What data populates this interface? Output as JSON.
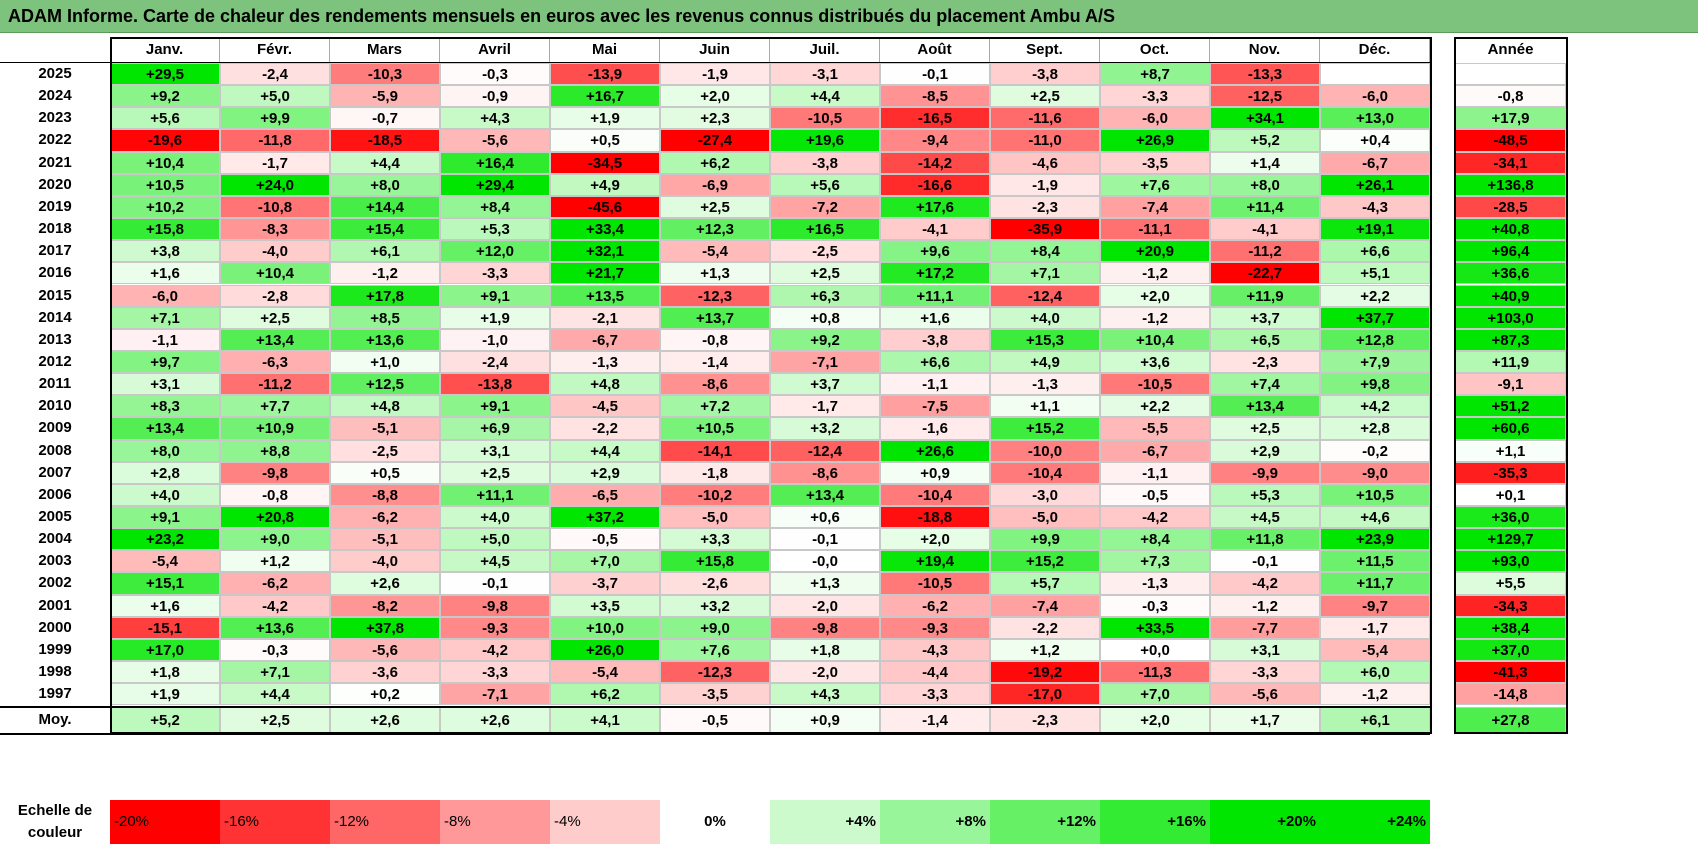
{
  "title": "ADAM Informe. Carte de chaleur des rendements mensuels en euros avec les revenus connus distribués du placement Ambu A/S",
  "colors": {
    "positive": "#00e600",
    "negative": "#ff0000",
    "neutral": "#ffffff",
    "title_bg": "#7dc27d"
  },
  "chart_data": {
    "type": "heatmap",
    "columns": [
      "Janv.",
      "Févr.",
      "Mars",
      "Avril",
      "Mai",
      "Juin",
      "Juil.",
      "Août",
      "Sept.",
      "Oct.",
      "Nov.",
      "Déc."
    ],
    "year_column_label": "Année",
    "rows": [
      {
        "year": "2025",
        "values": [
          "+29,5",
          "-2,4",
          "-10,3",
          "-0,3",
          "-13,9",
          "-1,9",
          "-3,1",
          "-0,1",
          "-3,8",
          "+8,7",
          "-13,3",
          ""
        ],
        "annual": ""
      },
      {
        "year": "2024",
        "values": [
          "+9,2",
          "+5,0",
          "-5,9",
          "-0,9",
          "+16,7",
          "+2,0",
          "+4,4",
          "-8,5",
          "+2,5",
          "-3,3",
          "-12,5",
          "-6,0"
        ],
        "annual": "-0,8"
      },
      {
        "year": "2023",
        "values": [
          "+5,6",
          "+9,9",
          "-0,7",
          "+4,3",
          "+1,9",
          "+2,3",
          "-10,5",
          "-16,5",
          "-11,6",
          "-6,0",
          "+34,1",
          "+13,0"
        ],
        "annual": "+17,9"
      },
      {
        "year": "2022",
        "values": [
          "-19,6",
          "-11,8",
          "-18,5",
          "-5,6",
          "+0,5",
          "-27,4",
          "+19,6",
          "-9,4",
          "-11,0",
          "+26,9",
          "+5,2",
          "+0,4"
        ],
        "annual": "-48,5"
      },
      {
        "year": "2021",
        "values": [
          "+10,4",
          "-1,7",
          "+4,4",
          "+16,4",
          "-34,5",
          "+6,2",
          "-3,8",
          "-14,2",
          "-4,6",
          "-3,5",
          "+1,4",
          "-6,7"
        ],
        "annual": "-34,1"
      },
      {
        "year": "2020",
        "values": [
          "+10,5",
          "+24,0",
          "+8,0",
          "+29,4",
          "+4,9",
          "-6,9",
          "+5,6",
          "-16,6",
          "-1,9",
          "+7,6",
          "+8,0",
          "+26,1"
        ],
        "annual": "+136,8"
      },
      {
        "year": "2019",
        "values": [
          "+10,2",
          "-10,8",
          "+14,4",
          "+8,4",
          "-45,6",
          "+2,5",
          "-7,2",
          "+17,6",
          "-2,3",
          "-7,4",
          "+11,4",
          "-4,3"
        ],
        "annual": "-28,5"
      },
      {
        "year": "2018",
        "values": [
          "+15,8",
          "-8,3",
          "+15,4",
          "+5,3",
          "+33,4",
          "+12,3",
          "+16,5",
          "-4,1",
          "-35,9",
          "-11,1",
          "-4,1",
          "+19,1"
        ],
        "annual": "+40,8"
      },
      {
        "year": "2017",
        "values": [
          "+3,8",
          "-4,0",
          "+6,1",
          "+12,0",
          "+32,1",
          "-5,4",
          "-2,5",
          "+9,6",
          "+8,4",
          "+20,9",
          "-11,2",
          "+6,6"
        ],
        "annual": "+96,4"
      },
      {
        "year": "2016",
        "values": [
          "+1,6",
          "+10,4",
          "-1,2",
          "-3,3",
          "+21,7",
          "+1,3",
          "+2,5",
          "+17,2",
          "+7,1",
          "-1,2",
          "-22,7",
          "+5,1"
        ],
        "annual": "+36,6"
      },
      {
        "year": "2015",
        "values": [
          "-6,0",
          "-2,8",
          "+17,8",
          "+9,1",
          "+13,5",
          "-12,3",
          "+6,3",
          "+11,1",
          "-12,4",
          "+2,0",
          "+11,9",
          "+2,2"
        ],
        "annual": "+40,9"
      },
      {
        "year": "2014",
        "values": [
          "+7,1",
          "+2,5",
          "+8,5",
          "+1,9",
          "-2,1",
          "+13,7",
          "+0,8",
          "+1,6",
          "+4,0",
          "-1,2",
          "+3,7",
          "+37,7"
        ],
        "annual": "+103,0"
      },
      {
        "year": "2013",
        "values": [
          "-1,1",
          "+13,4",
          "+13,6",
          "-1,0",
          "-6,7",
          "-0,8",
          "+9,2",
          "-3,8",
          "+15,3",
          "+10,4",
          "+6,5",
          "+12,8"
        ],
        "annual": "+87,3"
      },
      {
        "year": "2012",
        "values": [
          "+9,7",
          "-6,3",
          "+1,0",
          "-2,4",
          "-1,3",
          "-1,4",
          "-7,1",
          "+6,6",
          "+4,9",
          "+3,6",
          "-2,3",
          "+7,9"
        ],
        "annual": "+11,9"
      },
      {
        "year": "2011",
        "values": [
          "+3,1",
          "-11,2",
          "+12,5",
          "-13,8",
          "+4,8",
          "-8,6",
          "+3,7",
          "-1,1",
          "-1,3",
          "-10,5",
          "+7,4",
          "+9,8"
        ],
        "annual": "-9,1"
      },
      {
        "year": "2010",
        "values": [
          "+8,3",
          "+7,7",
          "+4,8",
          "+9,1",
          "-4,5",
          "+7,2",
          "-1,7",
          "-7,5",
          "+1,1",
          "+2,2",
          "+13,4",
          "+4,2"
        ],
        "annual": "+51,2"
      },
      {
        "year": "2009",
        "values": [
          "+13,4",
          "+10,9",
          "-5,1",
          "+6,9",
          "-2,2",
          "+10,5",
          "+3,2",
          "-1,6",
          "+15,2",
          "-5,5",
          "+2,5",
          "+2,8"
        ],
        "annual": "+60,6"
      },
      {
        "year": "2008",
        "values": [
          "+8,0",
          "+8,8",
          "-2,5",
          "+3,1",
          "+4,4",
          "-14,1",
          "-12,4",
          "+26,6",
          "-10,0",
          "-6,7",
          "+2,9",
          "-0,2"
        ],
        "annual": "+1,1"
      },
      {
        "year": "2007",
        "values": [
          "+2,8",
          "-9,8",
          "+0,5",
          "+2,5",
          "+2,9",
          "-1,8",
          "-8,6",
          "+0,9",
          "-10,4",
          "-1,1",
          "-9,9",
          "-9,0"
        ],
        "annual": "-35,3"
      },
      {
        "year": "2006",
        "values": [
          "+4,0",
          "-0,8",
          "-8,8",
          "+11,1",
          "-6,5",
          "-10,2",
          "+13,4",
          "-10,4",
          "-3,0",
          "-0,5",
          "+5,3",
          "+10,5"
        ],
        "annual": "+0,1"
      },
      {
        "year": "2005",
        "values": [
          "+9,1",
          "+20,8",
          "-6,2",
          "+4,0",
          "+37,2",
          "-5,0",
          "+0,6",
          "-18,8",
          "-5,0",
          "-4,2",
          "+4,5",
          "+4,6"
        ],
        "annual": "+36,0"
      },
      {
        "year": "2004",
        "values": [
          "+23,2",
          "+9,0",
          "-5,1",
          "+5,0",
          "-0,5",
          "+3,3",
          "-0,1",
          "+2,0",
          "+9,9",
          "+8,4",
          "+11,8",
          "+23,9"
        ],
        "annual": "+129,7"
      },
      {
        "year": "2003",
        "values": [
          "-5,4",
          "+1,2",
          "-4,0",
          "+4,5",
          "+7,0",
          "+15,8",
          "-0,0",
          "+19,4",
          "+15,2",
          "+7,3",
          "-0,1",
          "+11,5"
        ],
        "annual": "+93,0"
      },
      {
        "year": "2002",
        "values": [
          "+15,1",
          "-6,2",
          "+2,6",
          "-0,1",
          "-3,7",
          "-2,6",
          "+1,3",
          "-10,5",
          "+5,7",
          "-1,3",
          "-4,2",
          "+11,7"
        ],
        "annual": "+5,5"
      },
      {
        "year": "2001",
        "values": [
          "+1,6",
          "-4,2",
          "-8,2",
          "-9,8",
          "+3,5",
          "+3,2",
          "-2,0",
          "-6,2",
          "-7,4",
          "-0,3",
          "-1,2",
          "-9,7"
        ],
        "annual": "-34,3"
      },
      {
        "year": "2000",
        "values": [
          "-15,1",
          "+13,6",
          "+37,8",
          "-9,3",
          "+10,0",
          "+9,0",
          "-9,8",
          "-9,3",
          "-2,2",
          "+33,5",
          "-7,7",
          "-1,7"
        ],
        "annual": "+38,4"
      },
      {
        "year": "1999",
        "values": [
          "+17,0",
          "-0,3",
          "-5,6",
          "-4,2",
          "+26,0",
          "+7,6",
          "+1,8",
          "-4,3",
          "+1,2",
          "+0,0",
          "+3,1",
          "-5,4"
        ],
        "annual": "+37,0"
      },
      {
        "year": "1998",
        "values": [
          "+1,8",
          "+7,1",
          "-3,6",
          "-3,3",
          "-5,4",
          "-12,3",
          "-2,0",
          "-4,4",
          "-19,2",
          "-11,3",
          "-3,3",
          "+6,0"
        ],
        "annual": "-41,3"
      },
      {
        "year": "1997",
        "values": [
          "+1,9",
          "+4,4",
          "+0,2",
          "-7,1",
          "+6,2",
          "-3,5",
          "+4,3",
          "-3,3",
          "-17,0",
          "+7,0",
          "-5,6",
          "-1,2"
        ],
        "annual": "-14,8"
      }
    ],
    "average": {
      "label": "Moy.",
      "values": [
        "+5,2",
        "+2,5",
        "+2,6",
        "+2,6",
        "+4,1",
        "-0,5",
        "+0,9",
        "-1,4",
        "-2,3",
        "+2,0",
        "+1,7",
        "+6,1"
      ],
      "annual": "+27,8"
    },
    "scale": {
      "label_line1": "Echelle de",
      "label_line2": "couleur",
      "steps": [
        "-20%",
        "-16%",
        "-12%",
        "-8%",
        "-4%",
        "0%",
        "+4%",
        "+8%",
        "+12%",
        "+16%",
        "+20%",
        "+24%"
      ],
      "values": [
        -20,
        -16,
        -12,
        -8,
        -4,
        0,
        4,
        8,
        12,
        16,
        20,
        24
      ]
    }
  }
}
